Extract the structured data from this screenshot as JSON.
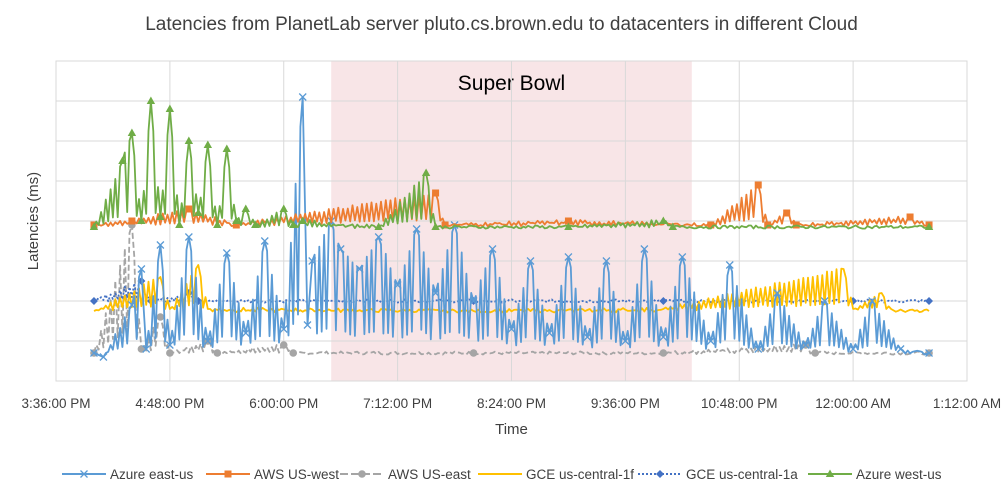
{
  "chart_data": {
    "type": "line",
    "title": "Latencies from PlanetLab server pluto.cs.brown.edu to datacenters in different Cloud",
    "xlabel": "Time",
    "ylabel": "Latencies (ms)",
    "x_ticks": [
      "3:36:00 PM",
      "4:48:00 PM",
      "6:00:00 PM",
      "7:12:00 PM",
      "8:24:00 PM",
      "9:36:00 PM",
      "10:48:00 PM",
      "12:00:00 AM",
      "1:12:00 AM"
    ],
    "x_range_hours": [
      15.6,
      25.2
    ],
    "y_range_levels": [
      0,
      8
    ],
    "y_tick_labels": [],
    "grid": true,
    "legend_position": "bottom",
    "annotation": {
      "label": "Super Bowl",
      "start_hour": 18.5,
      "end_hour": 22.3
    },
    "series": [
      {
        "name": "Azure east-us",
        "color": "#5B9BD5",
        "marker": "x",
        "dash": "solid",
        "baseline": 0.7,
        "points": [
          [
            16.0,
            0.7
          ],
          [
            16.1,
            0.6
          ],
          [
            16.4,
            1.9
          ],
          [
            16.5,
            2.8
          ],
          [
            16.55,
            0.8
          ],
          [
            16.7,
            3.4
          ],
          [
            16.8,
            0.9
          ],
          [
            17.0,
            3.6
          ],
          [
            17.2,
            1.0
          ],
          [
            17.4,
            3.2
          ],
          [
            17.6,
            1.2
          ],
          [
            17.8,
            3.5
          ],
          [
            18.0,
            1.3
          ],
          [
            18.2,
            7.1
          ],
          [
            18.25,
            1.4
          ],
          [
            18.3,
            3.0
          ],
          [
            18.5,
            4.0
          ],
          [
            18.6,
            3.3
          ],
          [
            18.8,
            2.8
          ],
          [
            19.0,
            3.6
          ],
          [
            19.2,
            2.4
          ],
          [
            19.4,
            3.8
          ],
          [
            19.6,
            2.2
          ],
          [
            19.8,
            3.9
          ],
          [
            20.0,
            2.0
          ],
          [
            20.2,
            3.3
          ],
          [
            20.4,
            1.3
          ],
          [
            20.6,
            3.0
          ],
          [
            20.8,
            1.2
          ],
          [
            21.0,
            3.1
          ],
          [
            21.2,
            1.1
          ],
          [
            21.4,
            3.0
          ],
          [
            21.6,
            1.0
          ],
          [
            21.8,
            3.3
          ],
          [
            22.0,
            1.1
          ],
          [
            22.2,
            3.1
          ],
          [
            22.5,
            1.0
          ],
          [
            22.7,
            2.9
          ],
          [
            23.0,
            0.8
          ],
          [
            23.2,
            2.2
          ],
          [
            23.5,
            0.9
          ],
          [
            23.7,
            2.0
          ],
          [
            24.0,
            0.8
          ],
          [
            24.2,
            2.0
          ],
          [
            24.5,
            0.8
          ],
          [
            24.8,
            0.7
          ]
        ]
      },
      {
        "name": "AWS US-west",
        "color": "#ED7D31",
        "marker": "square",
        "dash": "solid",
        "baseline": 3.9,
        "points": [
          [
            16.0,
            3.9
          ],
          [
            16.4,
            4.0
          ],
          [
            17.0,
            4.3
          ],
          [
            17.5,
            3.9
          ],
          [
            19.6,
            4.7
          ],
          [
            19.7,
            3.9
          ],
          [
            21.0,
            4.0
          ],
          [
            22.5,
            3.9
          ],
          [
            23.0,
            4.9
          ],
          [
            23.1,
            3.9
          ],
          [
            23.3,
            4.2
          ],
          [
            23.4,
            3.9
          ],
          [
            24.6,
            4.1
          ],
          [
            24.8,
            3.9
          ]
        ]
      },
      {
        "name": "AWS US-east",
        "color": "#A5A5A5",
        "marker": "circle",
        "dash": "dash",
        "baseline": 0.7,
        "points": [
          [
            16.0,
            0.7
          ],
          [
            16.4,
            3.9
          ],
          [
            16.5,
            0.8
          ],
          [
            16.7,
            1.6
          ],
          [
            16.8,
            0.7
          ],
          [
            17.2,
            1.0
          ],
          [
            17.3,
            0.7
          ],
          [
            18.0,
            0.9
          ],
          [
            18.1,
            0.7
          ],
          [
            20.0,
            0.7
          ],
          [
            22.0,
            0.7
          ],
          [
            23.5,
            0.9
          ],
          [
            23.6,
            0.7
          ],
          [
            24.8,
            0.7
          ]
        ]
      },
      {
        "name": "GCE us-central-1f",
        "color": "#FFC000",
        "marker": "none",
        "dash": "solid",
        "baseline": 1.75,
        "points": [
          [
            16.0,
            1.75
          ],
          [
            16.7,
            2.6
          ],
          [
            16.8,
            1.8
          ],
          [
            17.1,
            2.9
          ],
          [
            17.2,
            1.8
          ],
          [
            20.0,
            1.75
          ],
          [
            22.0,
            1.8
          ],
          [
            23.9,
            2.8
          ],
          [
            24.0,
            1.8
          ],
          [
            24.3,
            2.2
          ],
          [
            24.4,
            1.8
          ],
          [
            24.8,
            1.75
          ]
        ]
      },
      {
        "name": "GCE us-central-1a",
        "color": "#4472C4",
        "marker": "diamond",
        "dash": "dot",
        "baseline": 2.0,
        "points": [
          [
            16.0,
            2.0
          ],
          [
            16.5,
            2.5
          ],
          [
            16.6,
            2.0
          ],
          [
            17.0,
            2.2
          ],
          [
            17.1,
            2.0
          ],
          [
            20.0,
            2.0
          ],
          [
            22.0,
            2.0
          ],
          [
            24.0,
            2.0
          ],
          [
            24.8,
            2.0
          ]
        ]
      },
      {
        "name": "Azure west-us",
        "color": "#70AD47",
        "marker": "triangle",
        "dash": "solid",
        "baseline": 3.85,
        "points": [
          [
            16.0,
            3.85
          ],
          [
            16.3,
            5.5
          ],
          [
            16.4,
            6.2
          ],
          [
            16.5,
            4.0
          ],
          [
            16.6,
            7.0
          ],
          [
            16.7,
            4.1
          ],
          [
            16.8,
            6.8
          ],
          [
            16.9,
            3.9
          ],
          [
            17.0,
            6.0
          ],
          [
            17.1,
            4.2
          ],
          [
            17.2,
            5.9
          ],
          [
            17.3,
            3.9
          ],
          [
            17.4,
            5.8
          ],
          [
            17.5,
            4.0
          ],
          [
            17.6,
            4.3
          ],
          [
            17.7,
            3.9
          ],
          [
            18.0,
            4.3
          ],
          [
            18.1,
            3.9
          ],
          [
            18.2,
            4.0
          ],
          [
            19.0,
            3.85
          ],
          [
            19.5,
            5.2
          ],
          [
            19.6,
            3.85
          ],
          [
            21.0,
            3.85
          ],
          [
            22.0,
            4.0
          ],
          [
            22.1,
            3.85
          ],
          [
            24.8,
            3.85
          ]
        ]
      }
    ]
  }
}
